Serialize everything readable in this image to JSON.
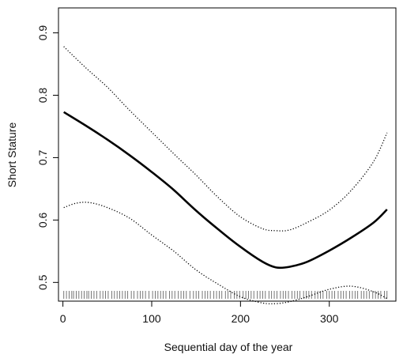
{
  "chart_data": {
    "type": "line",
    "title": "",
    "xlabel": "Sequential day of the year",
    "ylabel": "Short Stature",
    "xlim": [
      -5,
      375
    ],
    "ylim": [
      0.47,
      0.94
    ],
    "x_ticks": [
      0,
      100,
      200,
      300
    ],
    "y_ticks": [
      0.5,
      0.6,
      0.7,
      0.8,
      0.9
    ],
    "grid": false,
    "legend": "none",
    "colors": {
      "line": "#000000",
      "axes": "#000000",
      "rug": "#555555"
    },
    "series": [
      {
        "style": "solid",
        "x": [
          1,
          25,
          50,
          75,
          100,
          125,
          150,
          175,
          200,
          225,
          240,
          255,
          275,
          300,
          325,
          350,
          365
        ],
        "y": [
          0.773,
          0.752,
          0.729,
          0.704,
          0.677,
          0.648,
          0.615,
          0.585,
          0.557,
          0.533,
          0.524,
          0.525,
          0.533,
          0.551,
          0.572,
          0.596,
          0.617
        ]
      },
      {
        "style": "dotted",
        "x": [
          1,
          25,
          50,
          75,
          100,
          125,
          150,
          175,
          200,
          225,
          240,
          255,
          275,
          300,
          325,
          350,
          365
        ],
        "y": [
          0.878,
          0.845,
          0.813,
          0.776,
          0.741,
          0.706,
          0.672,
          0.636,
          0.605,
          0.586,
          0.583,
          0.584,
          0.596,
          0.616,
          0.648,
          0.694,
          0.74
        ]
      },
      {
        "style": "dotted",
        "x": [
          1,
          15,
          30,
          50,
          75,
          100,
          125,
          150,
          175,
          200,
          225,
          240,
          255,
          275,
          300,
          325,
          350,
          365
        ],
        "y": [
          0.62,
          0.627,
          0.628,
          0.62,
          0.603,
          0.576,
          0.55,
          0.52,
          0.497,
          0.477,
          0.467,
          0.466,
          0.469,
          0.477,
          0.489,
          0.494,
          0.485,
          0.474
        ]
      }
    ],
    "rug": [
      1,
      4,
      7,
      10,
      12,
      15,
      18,
      21,
      24,
      27,
      29,
      32,
      35,
      38,
      42,
      45,
      48,
      51,
      55,
      58,
      61,
      64,
      67,
      70,
      73,
      77,
      80,
      84,
      87,
      90,
      93,
      97,
      101,
      104,
      107,
      110,
      113,
      116,
      120,
      123,
      126,
      130,
      133,
      136,
      139,
      143,
      147,
      150,
      153,
      157,
      160,
      163,
      166,
      170,
      173,
      176,
      179,
      183,
      186,
      189,
      193,
      196,
      199,
      203,
      206,
      209,
      212,
      215,
      219,
      222,
      225,
      228,
      232,
      235,
      238,
      241,
      245,
      248,
      251,
      254,
      258,
      261,
      264,
      267,
      271,
      274,
      277,
      280,
      284,
      287,
      290,
      293,
      297,
      300,
      303,
      306,
      310,
      313,
      316,
      319,
      323,
      326,
      329,
      332,
      336,
      339,
      342,
      345,
      349,
      352,
      355,
      358,
      362,
      365
    ]
  }
}
